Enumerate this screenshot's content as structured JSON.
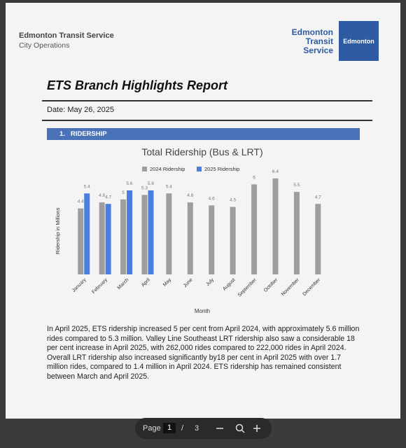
{
  "header": {
    "org": "Edmonton Transit Service",
    "department": "City Operations",
    "brand_lines": [
      "Edmonton",
      "Transit",
      "Service"
    ],
    "logo": "Edmonton"
  },
  "report": {
    "title": "ETS Branch Highlights Report",
    "date": "Date: May 26, 2025",
    "section": "1.   RIDERSHIP",
    "paragraph": "In April 2025, ETS ridership increased 5 per cent from April 2024, with approximately 5.6 million rides compared to 5.3 million. Valley Line Southeast LRT ridership also saw a considerable 18 per cent increase in April 2025, with 262,000 rides compared to 222,000 rides in April 2024. Overall LRT ridership also increased significantly by18 per cent in April 2025 with over 1.7 million rides, compared to 1.4 million in April 2024. ETS ridership has remained consistent between March and April 2025."
  },
  "chart_data": {
    "type": "bar",
    "title": "Total Ridership (Bus & LRT)",
    "x_label": "Month",
    "y_label": "Ridership in Millions",
    "categories": [
      "January",
      "February",
      "March",
      "April",
      "May",
      "June",
      "July",
      "August",
      "September",
      "October",
      "November",
      "December"
    ],
    "series": [
      {
        "name": "2024 Ridership",
        "color": "#9e9e9e",
        "values": [
          4.4,
          4.8,
          5,
          5.3,
          5.4,
          4.8,
          4.6,
          4.5,
          6,
          6.4,
          5.5,
          4.7
        ]
      },
      {
        "name": "2025 Ridership",
        "color": "#4a7fe0",
        "values": [
          5.4,
          4.7,
          5.6,
          5.6,
          null,
          null,
          null,
          null,
          null,
          null,
          null,
          null
        ]
      }
    ],
    "ylim": [
      0,
      7
    ]
  },
  "viewer": {
    "page_label": "Page",
    "page": "1",
    "separator": "/",
    "total": "3"
  }
}
